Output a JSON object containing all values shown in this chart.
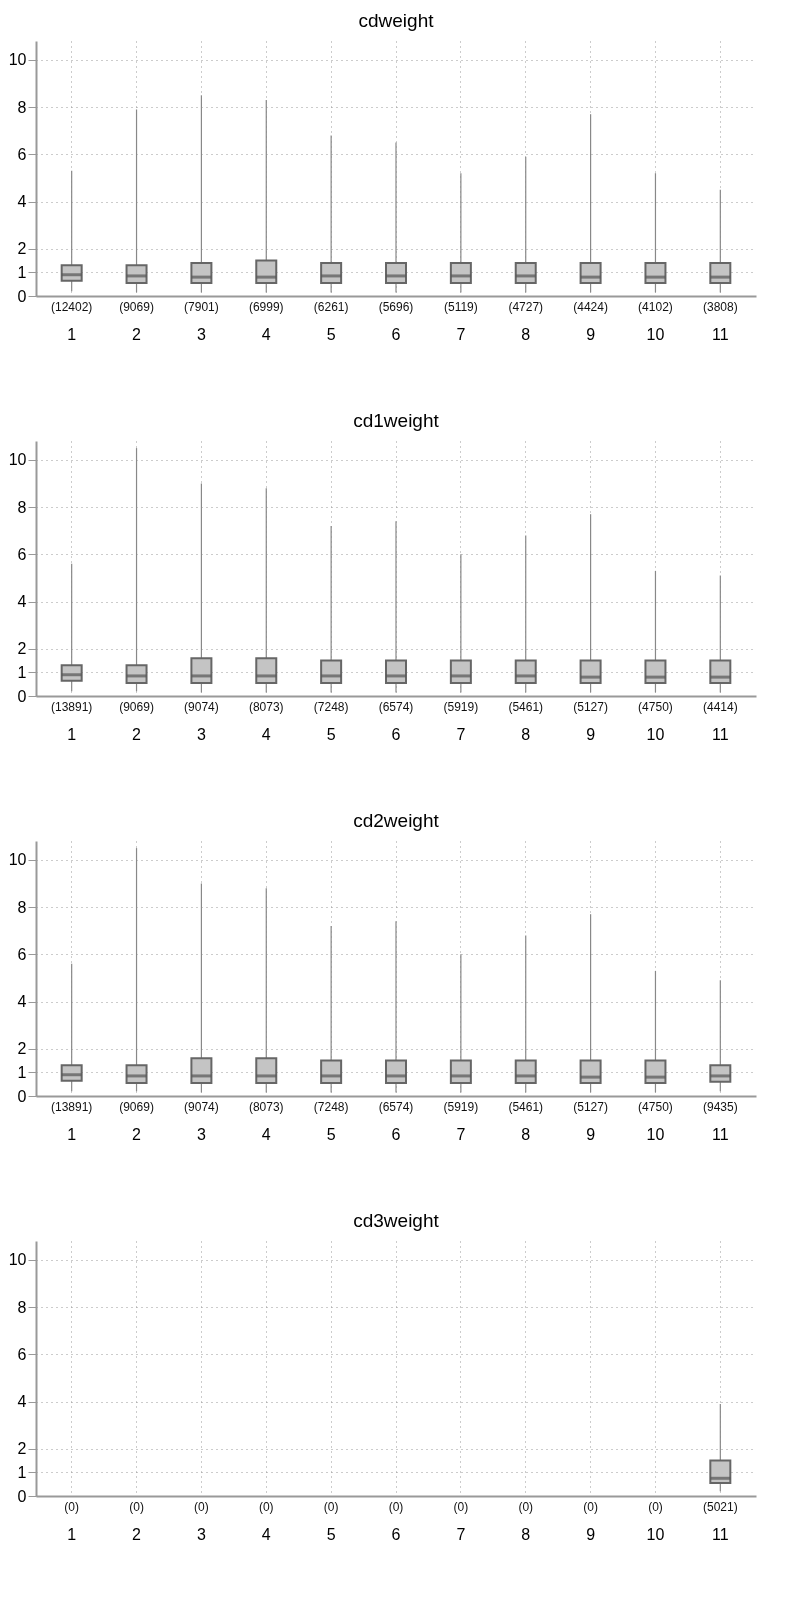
{
  "chart_data": [
    {
      "type": "box",
      "title": "cdweight",
      "categories": [
        "1",
        "2",
        "3",
        "4",
        "5",
        "6",
        "7",
        "8",
        "9",
        "10",
        "11"
      ],
      "ylim": [
        0,
        10.8
      ],
      "yticks": [
        0,
        1,
        2,
        4,
        6,
        8,
        10
      ],
      "grid": true,
      "boxes": [
        {
          "low": 0.2,
          "q1": 0.65,
          "median": 0.9,
          "q3": 1.3,
          "high": 5.3
        },
        {
          "low": 0.15,
          "q1": 0.55,
          "median": 0.85,
          "q3": 1.3,
          "high": 7.9
        },
        {
          "low": 0.15,
          "q1": 0.55,
          "median": 0.8,
          "q3": 1.4,
          "high": 8.5
        },
        {
          "low": 0.15,
          "q1": 0.55,
          "median": 0.8,
          "q3": 1.5,
          "high": 8.3
        },
        {
          "low": 0.15,
          "q1": 0.55,
          "median": 0.85,
          "q3": 1.4,
          "high": 6.8
        },
        {
          "low": 0.15,
          "q1": 0.55,
          "median": 0.85,
          "q3": 1.4,
          "high": 6.5
        },
        {
          "low": 0.15,
          "q1": 0.55,
          "median": 0.85,
          "q3": 1.4,
          "high": 5.2
        },
        {
          "low": 0.15,
          "q1": 0.55,
          "median": 0.85,
          "q3": 1.4,
          "high": 5.9
        },
        {
          "low": 0.15,
          "q1": 0.55,
          "median": 0.8,
          "q3": 1.4,
          "high": 7.7
        },
        {
          "low": 0.15,
          "q1": 0.55,
          "median": 0.8,
          "q3": 1.4,
          "high": 5.2
        },
        {
          "low": 0.15,
          "q1": 0.55,
          "median": 0.8,
          "q3": 1.4,
          "high": 4.5
        }
      ],
      "annotations": [
        "(12402)",
        "(9069)",
        "(7901)",
        "(6999)",
        "(6261)",
        "(5696)",
        "(5119)",
        "(4727)",
        "(4424)",
        "(4102)",
        "(3808)"
      ]
    },
    {
      "type": "box",
      "title": "cd1weight",
      "categories": [
        "1",
        "2",
        "3",
        "4",
        "5",
        "6",
        "7",
        "8",
        "9",
        "10",
        "11"
      ],
      "ylim": [
        0,
        10.8
      ],
      "yticks": [
        0,
        1,
        2,
        4,
        6,
        8,
        10
      ],
      "grid": true,
      "boxes": [
        {
          "low": 0.2,
          "q1": 0.65,
          "median": 0.9,
          "q3": 1.3,
          "high": 5.6
        },
        {
          "low": 0.2,
          "q1": 0.55,
          "median": 0.85,
          "q3": 1.3,
          "high": 10.5
        },
        {
          "low": 0.15,
          "q1": 0.55,
          "median": 0.85,
          "q3": 1.6,
          "high": 9.0
        },
        {
          "low": 0.15,
          "q1": 0.55,
          "median": 0.85,
          "q3": 1.6,
          "high": 8.8
        },
        {
          "low": 0.15,
          "q1": 0.55,
          "median": 0.85,
          "q3": 1.5,
          "high": 7.2
        },
        {
          "low": 0.15,
          "q1": 0.55,
          "median": 0.85,
          "q3": 1.5,
          "high": 7.4
        },
        {
          "low": 0.15,
          "q1": 0.55,
          "median": 0.85,
          "q3": 1.5,
          "high": 6.0
        },
        {
          "low": 0.15,
          "q1": 0.55,
          "median": 0.85,
          "q3": 1.5,
          "high": 6.8
        },
        {
          "low": 0.15,
          "q1": 0.55,
          "median": 0.8,
          "q3": 1.5,
          "high": 7.7
        },
        {
          "low": 0.15,
          "q1": 0.55,
          "median": 0.8,
          "q3": 1.5,
          "high": 5.3
        },
        {
          "low": 0.15,
          "q1": 0.55,
          "median": 0.8,
          "q3": 1.5,
          "high": 5.1
        }
      ],
      "annotations": [
        "(13891)",
        "(9069)",
        "(9074)",
        "(8073)",
        "(7248)",
        "(6574)",
        "(5919)",
        "(5461)",
        "(5127)",
        "(4750)",
        "(4414)"
      ]
    },
    {
      "type": "box",
      "title": "cd2weight",
      "categories": [
        "1",
        "2",
        "3",
        "4",
        "5",
        "6",
        "7",
        "8",
        "9",
        "10",
        "11"
      ],
      "ylim": [
        0,
        10.8
      ],
      "yticks": [
        0,
        1,
        2,
        4,
        6,
        8,
        10
      ],
      "grid": true,
      "boxes": [
        {
          "low": 0.2,
          "q1": 0.65,
          "median": 0.9,
          "q3": 1.3,
          "high": 5.6
        },
        {
          "low": 0.2,
          "q1": 0.55,
          "median": 0.85,
          "q3": 1.3,
          "high": 10.5
        },
        {
          "low": 0.15,
          "q1": 0.55,
          "median": 0.85,
          "q3": 1.6,
          "high": 9.0
        },
        {
          "low": 0.15,
          "q1": 0.55,
          "median": 0.85,
          "q3": 1.6,
          "high": 8.8
        },
        {
          "low": 0.15,
          "q1": 0.55,
          "median": 0.85,
          "q3": 1.5,
          "high": 7.2
        },
        {
          "low": 0.15,
          "q1": 0.55,
          "median": 0.85,
          "q3": 1.5,
          "high": 7.4
        },
        {
          "low": 0.15,
          "q1": 0.55,
          "median": 0.85,
          "q3": 1.5,
          "high": 6.0
        },
        {
          "low": 0.15,
          "q1": 0.55,
          "median": 0.85,
          "q3": 1.5,
          "high": 6.8
        },
        {
          "low": 0.15,
          "q1": 0.55,
          "median": 0.8,
          "q3": 1.5,
          "high": 7.7
        },
        {
          "low": 0.15,
          "q1": 0.55,
          "median": 0.8,
          "q3": 1.5,
          "high": 5.3
        },
        {
          "low": 0.2,
          "q1": 0.6,
          "median": 0.85,
          "q3": 1.3,
          "high": 4.9
        }
      ],
      "annotations": [
        "(13891)",
        "(9069)",
        "(9074)",
        "(8073)",
        "(7248)",
        "(6574)",
        "(5919)",
        "(5461)",
        "(5127)",
        "(4750)",
        "(9435)"
      ]
    },
    {
      "type": "box",
      "title": "cd3weight",
      "categories": [
        "1",
        "2",
        "3",
        "4",
        "5",
        "6",
        "7",
        "8",
        "9",
        "10",
        "11"
      ],
      "ylim": [
        0,
        10.8
      ],
      "yticks": [
        0,
        1,
        2,
        4,
        6,
        8,
        10
      ],
      "grid": true,
      "boxes": [
        null,
        null,
        null,
        null,
        null,
        null,
        null,
        null,
        null,
        null,
        {
          "low": 0.2,
          "q1": 0.55,
          "median": 0.75,
          "q3": 1.5,
          "high": 3.9
        }
      ],
      "annotations": [
        "(0)",
        "(0)",
        "(0)",
        "(0)",
        "(0)",
        "(0)",
        "(0)",
        "(0)",
        "(0)",
        "(0)",
        "(5021)"
      ]
    }
  ]
}
